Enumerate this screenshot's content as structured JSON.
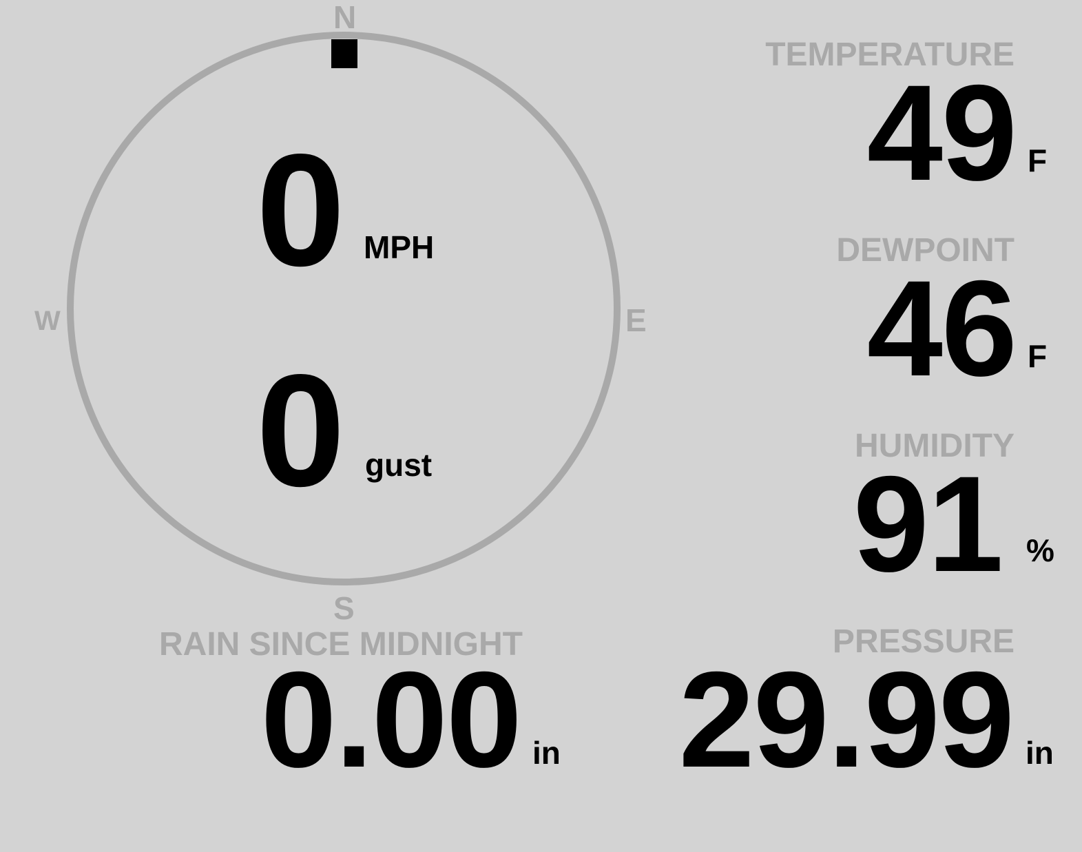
{
  "compass": {
    "north": "N",
    "south": "S",
    "east": "E",
    "west": "W",
    "wind_direction_deg": 0,
    "ring_color": "#a9a9a9",
    "pointer_color": "#000000"
  },
  "wind": {
    "speed": "0",
    "speed_unit": "MPH",
    "gust": "0",
    "gust_unit": "gust"
  },
  "temperature": {
    "label": "TEMPERATURE",
    "value": "49",
    "unit": "F"
  },
  "dewpoint": {
    "label": "DEWPOINT",
    "value": "46",
    "unit": "F"
  },
  "humidity": {
    "label": "HUMIDITY",
    "value": "91",
    "unit": "%"
  },
  "rain": {
    "label": "RAIN SINCE MIDNIGHT",
    "value": "0.00",
    "unit": "in"
  },
  "pressure": {
    "label": "PRESSURE",
    "value": "29.99",
    "unit": "in"
  },
  "colors": {
    "background": "#d3d3d3",
    "label": "#a9a9a9",
    "value": "#000000"
  }
}
